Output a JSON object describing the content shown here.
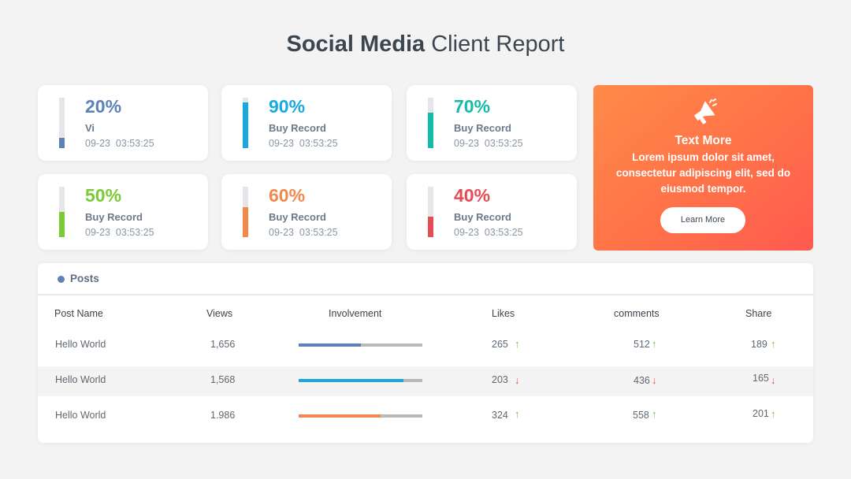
{
  "header": {
    "title_bold": "Social Media",
    "title_light": "Client Report"
  },
  "cards": [
    {
      "percent": "20%",
      "fill": 0.2,
      "label": "Vi",
      "timestamp": "09-23  03:53:25",
      "color": "#5b83b8"
    },
    {
      "percent": "90%",
      "fill": 0.9,
      "label": "Buy Record",
      "timestamp": "09-23  03:53:25",
      "color": "#19a9e1"
    },
    {
      "percent": "70%",
      "fill": 0.7,
      "label": "Buy Record",
      "timestamp": "09-23  03:53:25",
      "color": "#14bba8"
    },
    {
      "percent": "50%",
      "fill": 0.5,
      "label": "Buy Record",
      "timestamp": "09-23  03:53:25",
      "color": "#7acb35"
    },
    {
      "percent": "60%",
      "fill": 0.6,
      "label": "Buy Record",
      "timestamp": "09-23  03:53:25",
      "color": "#f2884b"
    },
    {
      "percent": "40%",
      "fill": 0.4,
      "label": "Buy Record",
      "timestamp": "09-23  03:53:25",
      "color": "#e64c55"
    }
  ],
  "promo": {
    "icon": "megaphone-icon",
    "title": "Text More",
    "body": "Lorem ipsum dolor sit amet, consectetur adipiscing elit, sed do eiusmod tempor.",
    "button_label": "Learn More"
  },
  "posts": {
    "heading": "Posts",
    "columns": [
      "Post Name",
      "Views",
      "Involvement",
      "Likes",
      "comments",
      "Share"
    ],
    "rows": [
      {
        "name": "Hello World",
        "views": "1,656",
        "involvement": 0.5,
        "involvement_color": "#5b83b8",
        "likes": "265",
        "likes_trend": "up",
        "comments": "512",
        "comments_trend": "up",
        "share": "189",
        "share_trend": "up"
      },
      {
        "name": "Hello World",
        "views": "1,568",
        "involvement": 0.85,
        "involvement_color": "#19a9e1",
        "likes": "203",
        "likes_trend": "down",
        "comments": "436",
        "comments_trend": "down",
        "share": "165",
        "share_trend": "down"
      },
      {
        "name": "Hello World",
        "views": "1.986",
        "involvement": 0.66,
        "involvement_color": "#f2884b",
        "likes": "324",
        "likes_trend": "up",
        "comments": "558",
        "comments_trend": "up",
        "share": "201",
        "share_trend": "up"
      }
    ]
  }
}
